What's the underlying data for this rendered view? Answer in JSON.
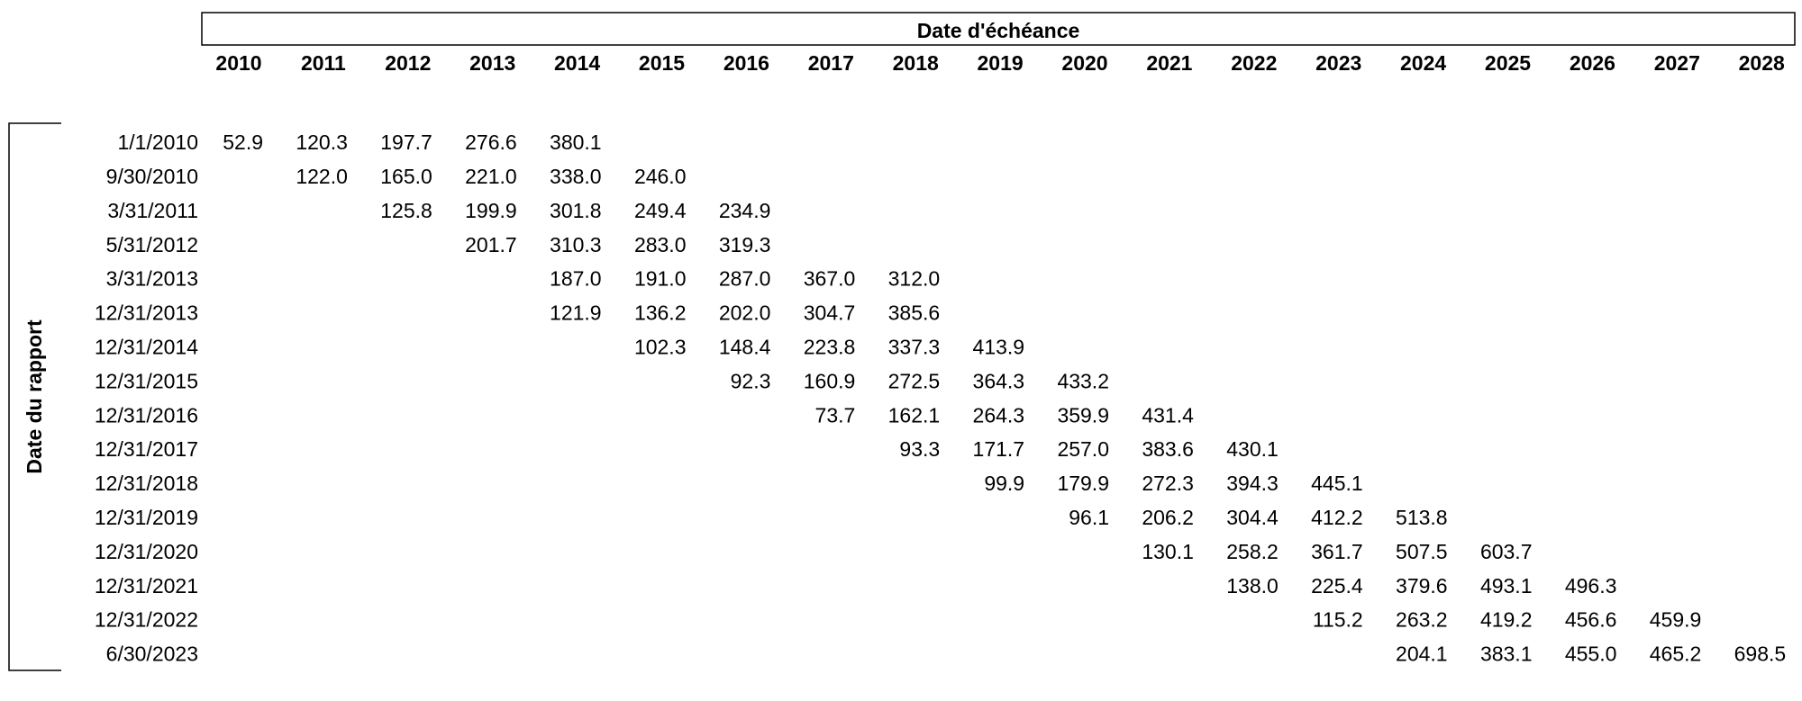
{
  "table": {
    "column_header": "Date d'échéance",
    "row_header": "Date du rapport",
    "columns": [
      2010,
      2011,
      2012,
      2013,
      2014,
      2015,
      2016,
      2017,
      2018,
      2019,
      2020,
      2021,
      2022,
      2023,
      2024,
      2025,
      2026,
      2027,
      2028
    ],
    "rows": [
      {
        "label": "1/1/2010",
        "values": [
          "52.9",
          "120.3",
          "197.7",
          "276.6",
          "380.1",
          null,
          null,
          null,
          null,
          null,
          null,
          null,
          null,
          null,
          null,
          null,
          null,
          null,
          null
        ]
      },
      {
        "label": "9/30/2010",
        "values": [
          null,
          "122.0",
          "165.0",
          "221.0",
          "338.0",
          "246.0",
          null,
          null,
          null,
          null,
          null,
          null,
          null,
          null,
          null,
          null,
          null,
          null,
          null
        ]
      },
      {
        "label": "3/31/2011",
        "values": [
          null,
          null,
          "125.8",
          "199.9",
          "301.8",
          "249.4",
          "234.9",
          null,
          null,
          null,
          null,
          null,
          null,
          null,
          null,
          null,
          null,
          null,
          null
        ]
      },
      {
        "label": "5/31/2012",
        "values": [
          null,
          null,
          null,
          "201.7",
          "310.3",
          "283.0",
          "319.3",
          null,
          null,
          null,
          null,
          null,
          null,
          null,
          null,
          null,
          null,
          null,
          null
        ]
      },
      {
        "label": "3/31/2013",
        "values": [
          null,
          null,
          null,
          null,
          "187.0",
          "191.0",
          "287.0",
          "367.0",
          "312.0",
          null,
          null,
          null,
          null,
          null,
          null,
          null,
          null,
          null,
          null
        ]
      },
      {
        "label": "12/31/2013",
        "values": [
          null,
          null,
          null,
          null,
          "121.9",
          "136.2",
          "202.0",
          "304.7",
          "385.6",
          null,
          null,
          null,
          null,
          null,
          null,
          null,
          null,
          null,
          null
        ]
      },
      {
        "label": "12/31/2014",
        "values": [
          null,
          null,
          null,
          null,
          null,
          "102.3",
          "148.4",
          "223.8",
          "337.3",
          "413.9",
          null,
          null,
          null,
          null,
          null,
          null,
          null,
          null,
          null
        ]
      },
      {
        "label": "12/31/2015",
        "values": [
          null,
          null,
          null,
          null,
          null,
          null,
          "92.3",
          "160.9",
          "272.5",
          "364.3",
          "433.2",
          null,
          null,
          null,
          null,
          null,
          null,
          null,
          null
        ]
      },
      {
        "label": "12/31/2016",
        "values": [
          null,
          null,
          null,
          null,
          null,
          null,
          null,
          "73.7",
          "162.1",
          "264.3",
          "359.9",
          "431.4",
          null,
          null,
          null,
          null,
          null,
          null,
          null
        ]
      },
      {
        "label": "12/31/2017",
        "values": [
          null,
          null,
          null,
          null,
          null,
          null,
          null,
          null,
          "93.3",
          "171.7",
          "257.0",
          "383.6",
          "430.1",
          null,
          null,
          null,
          null,
          null,
          null
        ]
      },
      {
        "label": "12/31/2018",
        "values": [
          null,
          null,
          null,
          null,
          null,
          null,
          null,
          null,
          null,
          "99.9",
          "179.9",
          "272.3",
          "394.3",
          "445.1",
          null,
          null,
          null,
          null,
          null
        ]
      },
      {
        "label": "12/31/2019",
        "values": [
          null,
          null,
          null,
          null,
          null,
          null,
          null,
          null,
          null,
          null,
          "96.1",
          "206.2",
          "304.4",
          "412.2",
          "513.8",
          null,
          null,
          null,
          null
        ]
      },
      {
        "label": "12/31/2020",
        "values": [
          null,
          null,
          null,
          null,
          null,
          null,
          null,
          null,
          null,
          null,
          null,
          "130.1",
          "258.2",
          "361.7",
          "507.5",
          "603.7",
          null,
          null,
          null
        ]
      },
      {
        "label": "12/31/2021",
        "values": [
          null,
          null,
          null,
          null,
          null,
          null,
          null,
          null,
          null,
          null,
          null,
          null,
          "138.0",
          "225.4",
          "379.6",
          "493.1",
          "496.3",
          null,
          null
        ]
      },
      {
        "label": "12/31/2022",
        "values": [
          null,
          null,
          null,
          null,
          null,
          null,
          null,
          null,
          null,
          null,
          null,
          null,
          null,
          "115.2",
          "263.2",
          "419.2",
          "456.6",
          "459.9",
          null
        ]
      },
      {
        "label": "6/30/2023",
        "values": [
          null,
          null,
          null,
          null,
          null,
          null,
          null,
          null,
          null,
          null,
          null,
          null,
          null,
          null,
          "204.1",
          "383.1",
          "455.0",
          "465.2",
          "698.5"
        ]
      }
    ]
  }
}
